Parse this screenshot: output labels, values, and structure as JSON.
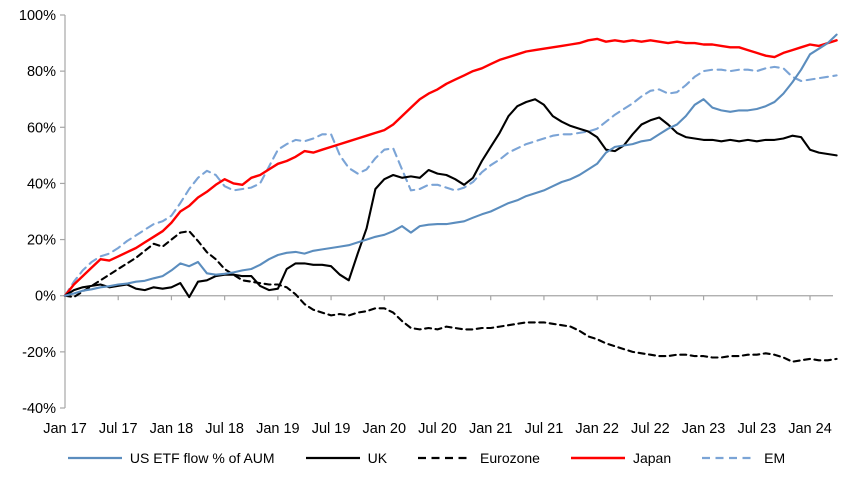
{
  "chart_data": {
    "type": "line",
    "title": "",
    "description": "Cumulative ETF flow as % of AUM by region, Jan 2017 - early 2024",
    "x_axis": {
      "tick_labels": [
        "Jan 17",
        "Jul 17",
        "Jan 18",
        "Jul 18",
        "Jan 19",
        "Jul 19",
        "Jan 20",
        "Jul 20",
        "Jan 21",
        "Jul 21",
        "Jan 22",
        "Jul 22",
        "Jan 23",
        "Jul 23",
        "Jan 24"
      ],
      "tick_values": [
        2017.0,
        2017.5,
        2018.0,
        2018.5,
        2019.0,
        2019.5,
        2020.0,
        2020.5,
        2021.0,
        2021.5,
        2022.0,
        2022.5,
        2023.0,
        2023.5,
        2024.0
      ],
      "range": [
        2017.0,
        2024.25
      ]
    },
    "y_axis": {
      "tick_labels": [
        "100%",
        "80%",
        "60%",
        "40%",
        "20%",
        "0%",
        "-20%",
        "-40%"
      ],
      "tick_values": [
        100,
        80,
        60,
        40,
        20,
        0,
        -20,
        -40
      ],
      "range": [
        -40,
        100
      ],
      "unit": "%"
    },
    "x_start": 2017.0,
    "x_step_years": 0.0833333,
    "grid": false,
    "zero_line": true,
    "axis_color": "#A6A6A6",
    "legend_position": "bottom",
    "series": [
      {
        "name": "US ETF flow % of AUM",
        "color": "#5B8DBE",
        "style": "solid",
        "values": [
          0,
          0.8,
          1.8,
          2.3,
          3,
          3.4,
          4,
          4.3,
          5,
          5.3,
          6.2,
          7,
          9,
          11.5,
          10.5,
          12,
          8,
          7.5,
          7.8,
          8.3,
          9,
          9.5,
          11,
          13,
          14.5,
          15.3,
          15.6,
          15,
          16,
          16.5,
          17,
          17.5,
          18,
          19,
          20,
          21,
          21.7,
          23,
          24.8,
          22.5,
          24.8,
          25.3,
          25.5,
          25.5,
          26,
          26.5,
          27.8,
          29,
          30,
          31.5,
          33,
          34,
          35.5,
          36.5,
          37.5,
          39,
          40.5,
          41.5,
          43,
          45,
          47,
          51,
          53,
          53.5,
          54,
          55,
          55.5,
          57.5,
          59.5,
          61,
          64,
          68,
          70,
          67,
          66,
          65.5,
          66,
          66,
          66.5,
          67.5,
          69,
          72,
          76,
          80.5,
          86,
          88,
          90,
          93
        ]
      },
      {
        "name": "UK",
        "color": "#000000",
        "style": "solid",
        "values": [
          0,
          2,
          3,
          3.5,
          4,
          3,
          3.5,
          4,
          2.5,
          2,
          3,
          2.5,
          3,
          4.5,
          -0.5,
          5,
          5.5,
          7,
          7.5,
          7.5,
          7,
          7,
          3.5,
          2,
          2.5,
          9.5,
          11.5,
          11.5,
          11,
          11,
          10.5,
          7.5,
          5.5,
          15,
          24,
          38,
          41.5,
          43,
          42,
          42.5,
          42,
          44.8,
          43.5,
          43,
          41.5,
          39.5,
          42,
          48,
          53,
          58,
          64,
          67.5,
          69,
          70,
          68,
          64,
          62,
          60.5,
          59.5,
          58.5,
          56.5,
          52,
          51.5,
          53.5,
          57.5,
          61,
          62.5,
          63.5,
          61,
          58,
          56.5,
          56,
          55.5,
          55.5,
          55,
          55.5,
          55,
          55.5,
          55,
          55.5,
          55.5,
          56,
          57,
          56.5,
          52,
          51,
          50.5,
          50
        ]
      },
      {
        "name": "Eurozone",
        "color": "#000000",
        "style": "dashed",
        "values": [
          0,
          -0.5,
          1.5,
          3.5,
          5.5,
          7.5,
          9.5,
          11.5,
          13.5,
          16,
          18.5,
          17.5,
          20,
          22.5,
          23,
          19.5,
          15.5,
          13,
          9.5,
          7.5,
          5.5,
          5,
          4.5,
          4,
          4,
          3,
          0.5,
          -3,
          -5,
          -6,
          -7,
          -6.5,
          -7,
          -6,
          -5.5,
          -4.5,
          -4.5,
          -6,
          -9,
          -11.5,
          -12,
          -11.5,
          -12,
          -11,
          -11.5,
          -12,
          -12,
          -11.5,
          -11.5,
          -11,
          -10.5,
          -10,
          -9.5,
          -9.5,
          -9.5,
          -10,
          -10.5,
          -11,
          -12.5,
          -14.5,
          -15.5,
          -17,
          -18,
          -19,
          -20,
          -20.5,
          -21,
          -21.5,
          -21.5,
          -21,
          -21,
          -21.5,
          -21.5,
          -22,
          -22,
          -21.5,
          -21.5,
          -21,
          -21,
          -20.5,
          -21,
          -22,
          -23.5,
          -23,
          -22.5,
          -23,
          -23,
          -22.5
        ]
      },
      {
        "name": "Japan",
        "color": "#FF0000",
        "style": "solid",
        "values": [
          0,
          4,
          7,
          10,
          13,
          12.5,
          14,
          15.5,
          17,
          19,
          21,
          23,
          26,
          30,
          32,
          35,
          37,
          39.5,
          41.5,
          40,
          39.5,
          42,
          43,
          45,
          47,
          48,
          49.5,
          51.5,
          51,
          52,
          53,
          54,
          55,
          56,
          57,
          58,
          59,
          61,
          64,
          67,
          70,
          72,
          73.5,
          75.5,
          77,
          78.5,
          80,
          81,
          82.5,
          84,
          85,
          86,
          87,
          87.5,
          88,
          88.5,
          89,
          89.5,
          90,
          91,
          91.5,
          90.5,
          91,
          90.5,
          91,
          90.5,
          91,
          90.5,
          90,
          90.5,
          90,
          90,
          89.5,
          89.5,
          89,
          88.5,
          88.5,
          87.5,
          86.5,
          85.5,
          85,
          86.5,
          87.5,
          88.5,
          89.5,
          89,
          90,
          91
        ]
      },
      {
        "name": "EM",
        "color": "#7BA4D6",
        "style": "dashed",
        "values": [
          0,
          5,
          9,
          12,
          14,
          15,
          17,
          19.5,
          21.5,
          23.5,
          25.5,
          26.5,
          28.5,
          33,
          38,
          42,
          44.5,
          43,
          39,
          37.5,
          38,
          38.5,
          40,
          46,
          52,
          54,
          55.5,
          55,
          56,
          57.5,
          57.5,
          50,
          45.5,
          43.5,
          45,
          49,
          52,
          52.5,
          45,
          37.5,
          38,
          39.5,
          39.5,
          38.5,
          37.5,
          38.5,
          40.5,
          44,
          46.5,
          48.5,
          51,
          52.5,
          54,
          55,
          56,
          57,
          57.5,
          57.5,
          58,
          58.5,
          59.5,
          62,
          64.5,
          66.5,
          68.5,
          71,
          73,
          73.5,
          72,
          72.5,
          75,
          78,
          80,
          80.5,
          80.5,
          80,
          80.5,
          80.5,
          80,
          81,
          81.5,
          81,
          78,
          76.5,
          77,
          77.5,
          78,
          78.5
        ]
      }
    ]
  }
}
